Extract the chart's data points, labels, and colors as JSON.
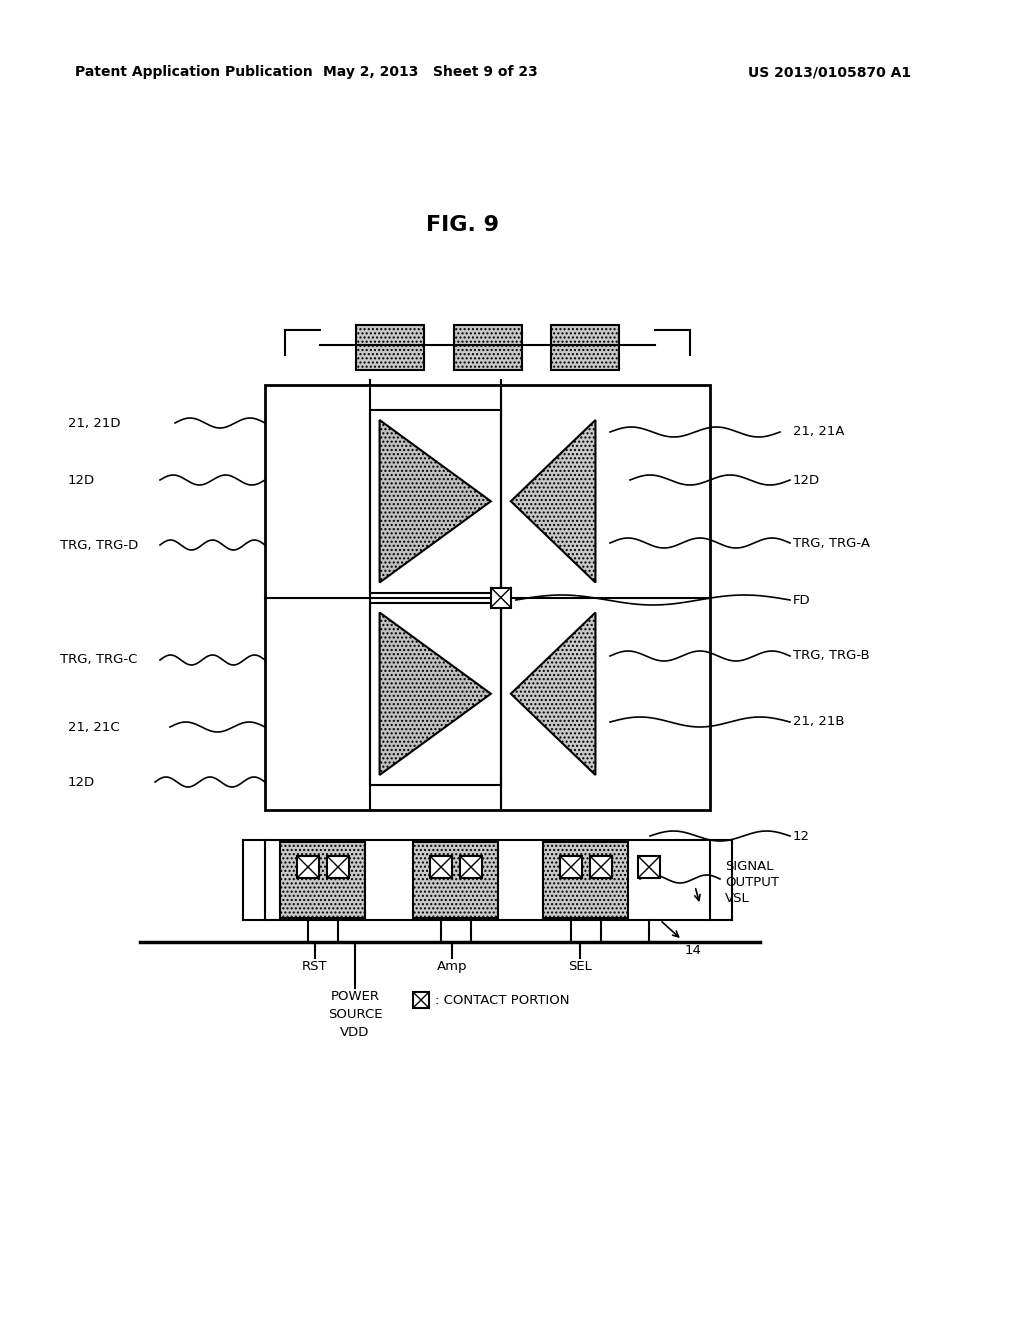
{
  "title": "FIG. 9",
  "header_left": "Patent Application Publication",
  "header_center": "May 2, 2013   Sheet 9 of 23",
  "header_right": "US 2013/0105870 A1",
  "bg_color": "#ffffff",
  "line_color": "#000000",
  "fig_title_fontsize": 16,
  "header_fontsize": 10,
  "label_fontsize": 9.5
}
